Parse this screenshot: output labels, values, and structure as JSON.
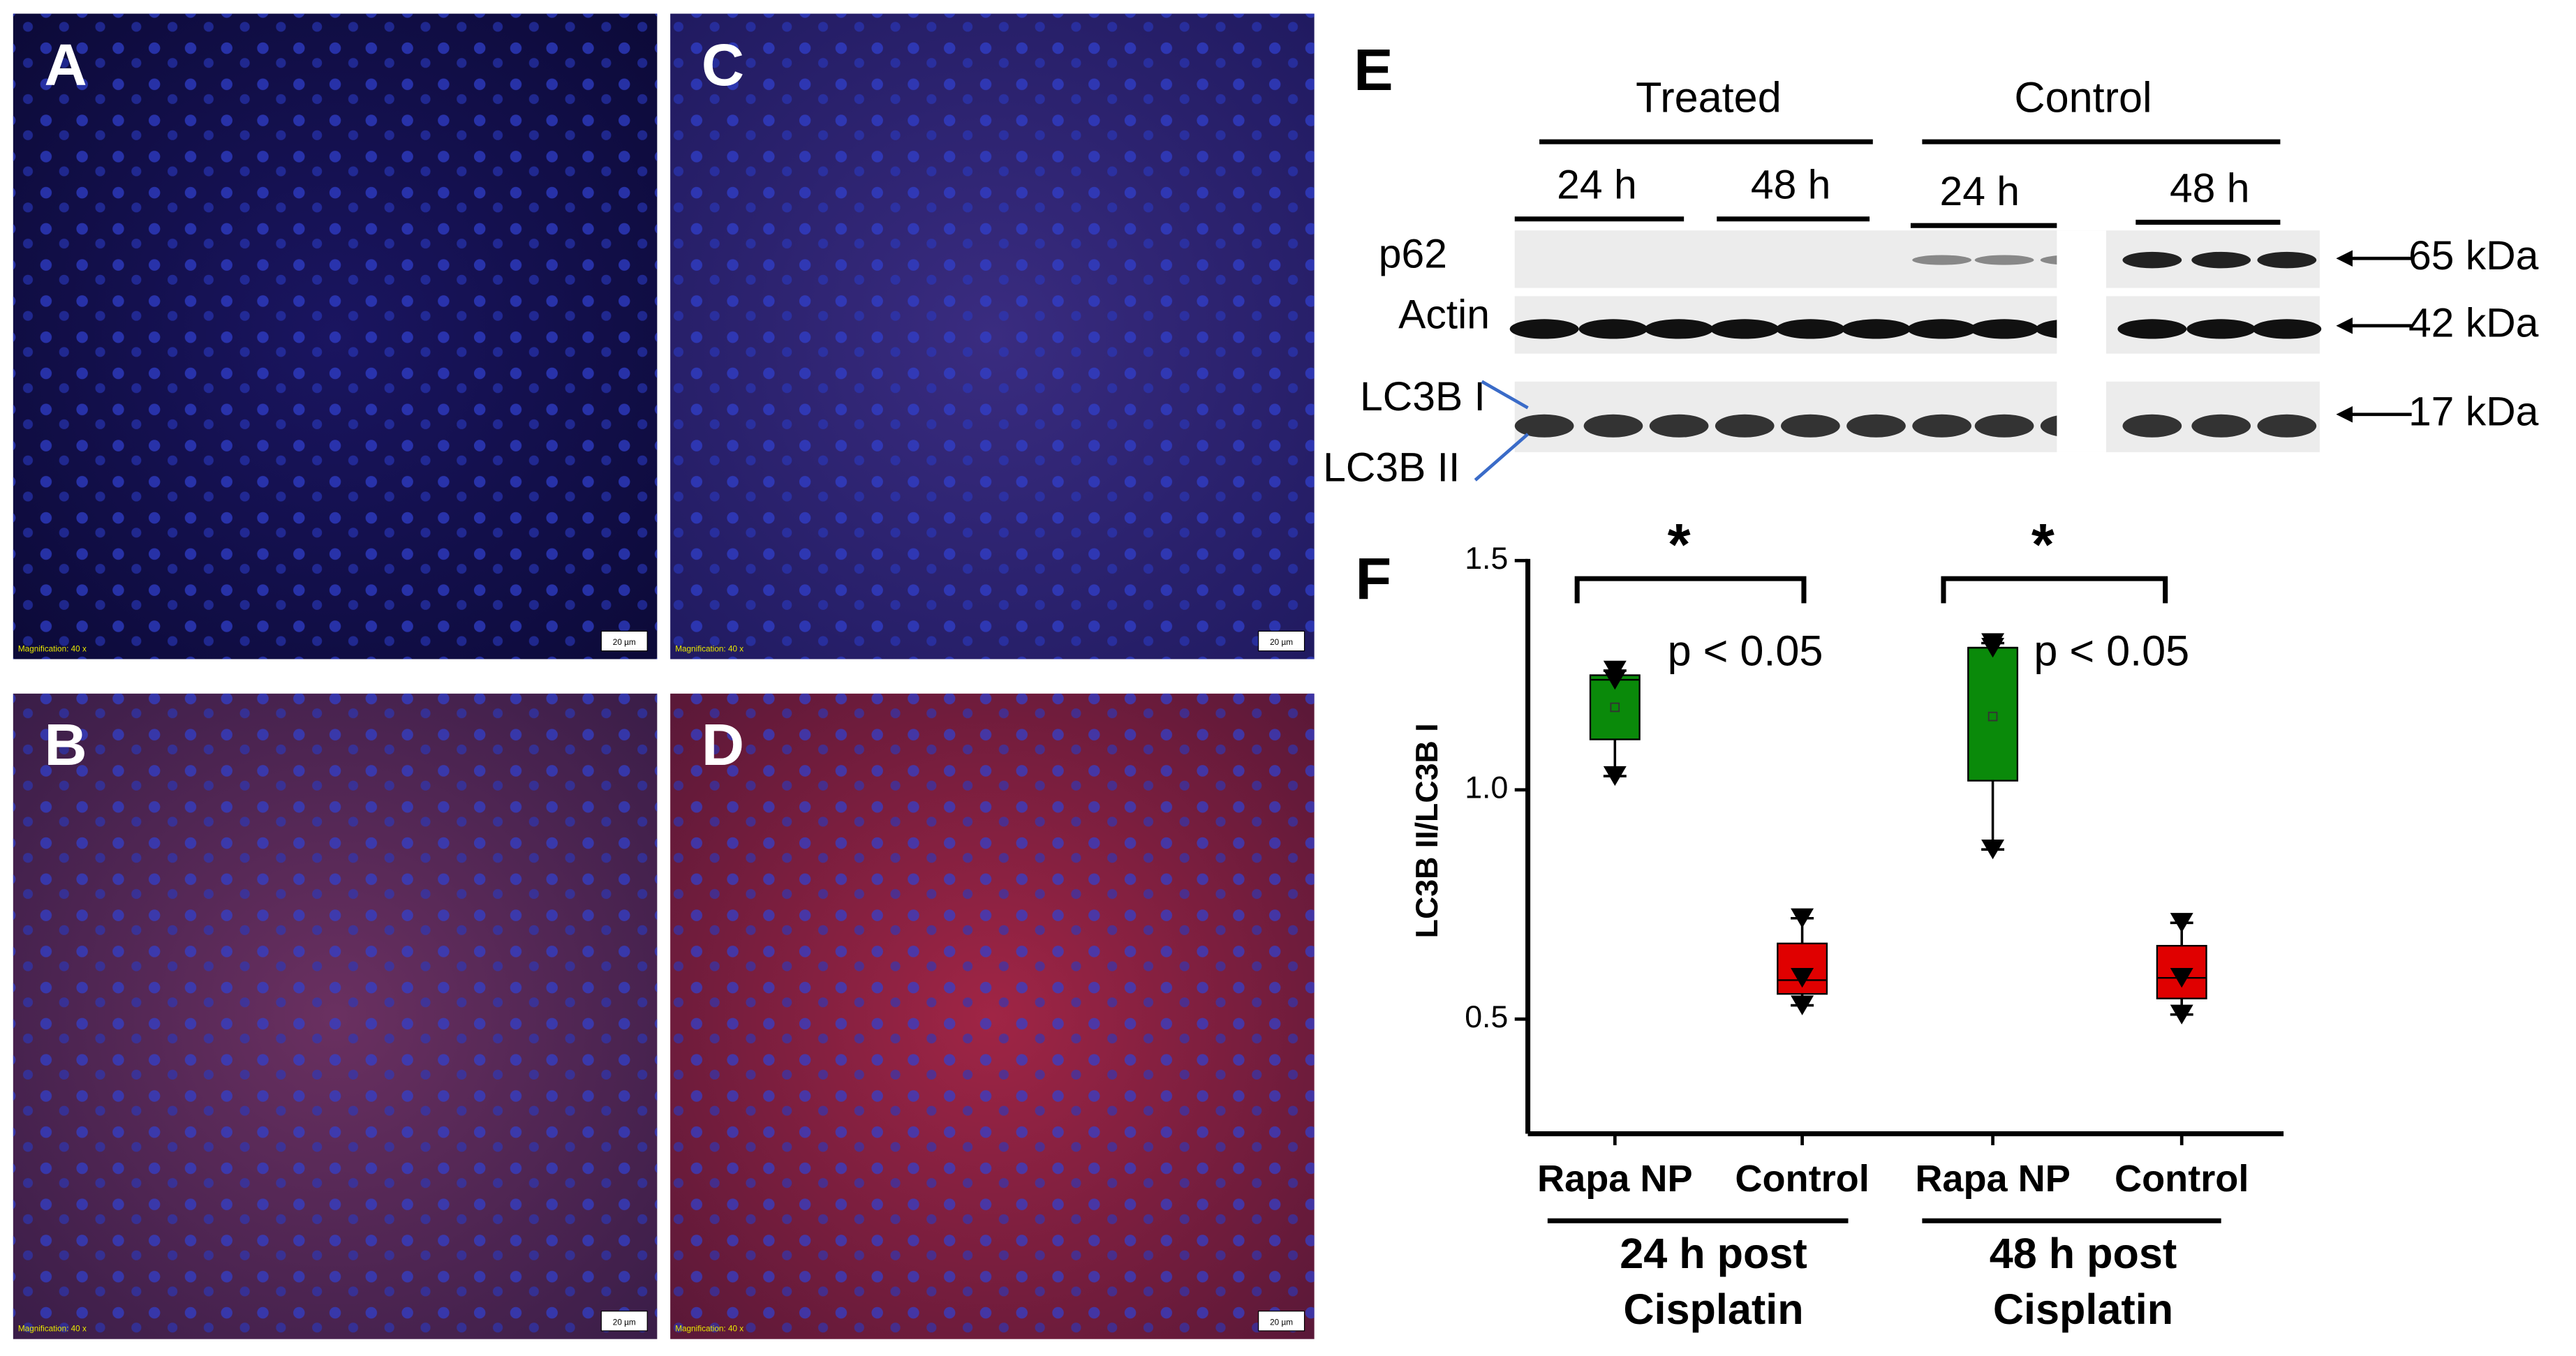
{
  "micrographs": [
    {
      "letter": "A",
      "magnification": "Magnification: 40 x",
      "scale_bar": "20 µm"
    },
    {
      "letter": "B",
      "magnification": "Magnification: 40 x",
      "scale_bar": "20 µm"
    },
    {
      "letter": "C",
      "magnification": "Magnification: 40 x",
      "scale_bar": "20 µm"
    },
    {
      "letter": "D",
      "magnification": "Magnification: 40 x",
      "scale_bar": "20 µm"
    }
  ],
  "blot": {
    "letter": "E",
    "groups": [
      "Treated",
      "Control"
    ],
    "timepoints": [
      "24 h",
      "48 h",
      "24 h",
      "48 h"
    ],
    "rows": [
      "p62",
      "Actin"
    ],
    "lc3_labels": [
      "LC3B I",
      "LC3B II"
    ],
    "sizes": [
      "65 kDa",
      "42 kDa",
      "17 kDa"
    ]
  },
  "chart_data": {
    "type": "box",
    "letter": "F",
    "y_label": "LC3B II/LC3B I",
    "categories": [
      "Rapa NP",
      "Control",
      "Rapa NP",
      "Control"
    ],
    "group_labels": [
      [
        "24 h post",
        "Cisplatin"
      ],
      [
        "48 h post",
        "Cisplatin"
      ]
    ],
    "colors": [
      "#0a8a0a",
      "#e00000",
      "#0a8a0a",
      "#e00000"
    ],
    "boxes": [
      {
        "whisker_low": 1.03,
        "q1": 1.11,
        "median": 1.24,
        "q3": 1.25,
        "whisker_high": 1.26,
        "mean": 1.18,
        "points": [
          1.26,
          1.24,
          1.03
        ]
      },
      {
        "whisker_low": 0.53,
        "q1": 0.555,
        "median": 0.585,
        "q3": 0.665,
        "whisker_high": 0.72,
        "mean": 0.6,
        "points": [
          0.72,
          0.59,
          0.53
        ]
      },
      {
        "whisker_low": 0.87,
        "q1": 1.02,
        "median": 1.31,
        "q3": 1.31,
        "whisker_high": 1.32,
        "mean": 1.16,
        "points": [
          1.32,
          1.31,
          0.87
        ]
      },
      {
        "whisker_low": 0.51,
        "q1": 0.545,
        "median": 0.59,
        "q3": 0.66,
        "whisker_high": 0.71,
        "mean": 0.6,
        "points": [
          0.71,
          0.59,
          0.51
        ]
      }
    ],
    "annotations": [
      {
        "star": "*",
        "text": "p < 0.05"
      },
      {
        "star": "*",
        "text": "p < 0.05"
      }
    ],
    "ylim": [
      0.25,
      1.5
    ],
    "yticks": [
      0.5,
      {
        "value": 1,
        "label": "1.0"
      },
      1.5
    ]
  }
}
